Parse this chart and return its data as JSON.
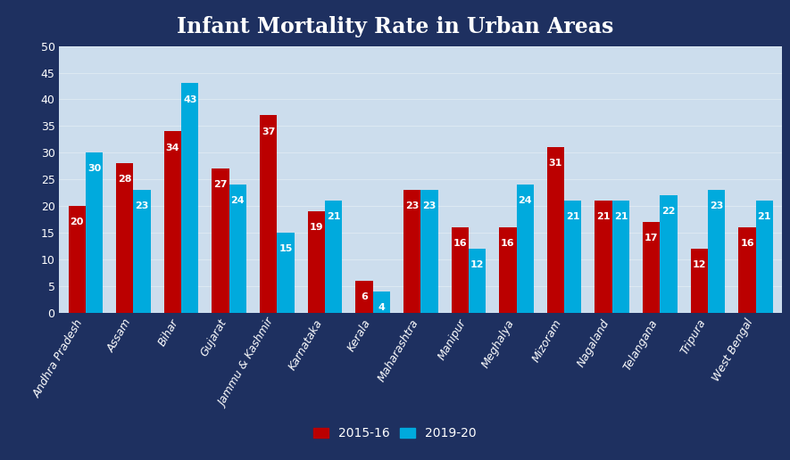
{
  "title": "Infant Mortality Rate in Urban Areas",
  "categories": [
    "Andhra Pradesh",
    "Assam",
    "Bihar",
    "Gujarat",
    "Jammu & Kashmir",
    "Karnataka",
    "Kerala",
    "Maharashtra",
    "Manipur",
    "Meghalya",
    "Mizoram",
    "Nagaland",
    "Telangana",
    "Tripura",
    "West Bengal"
  ],
  "values_2015": [
    20,
    28,
    34,
    27,
    37,
    19,
    6,
    23,
    16,
    16,
    31,
    21,
    17,
    12,
    16
  ],
  "values_2019": [
    30,
    23,
    43,
    24,
    15,
    21,
    4,
    23,
    12,
    24,
    21,
    21,
    22,
    23,
    21
  ],
  "bar_color_2015": "#bb0000",
  "bar_color_2019": "#00aadd",
  "background_outer": "#1e3060",
  "background_inner": "#ccdded",
  "title_color": "#ffffff",
  "label_color": "#ffffff",
  "value_color": "#ffffff",
  "ytick_color": "#ffffff",
  "ylim": [
    0,
    50
  ],
  "yticks": [
    0,
    5,
    10,
    15,
    20,
    25,
    30,
    35,
    40,
    45,
    50
  ],
  "legend_2015": "2015-16",
  "legend_2019": "2019-20",
  "bar_width": 0.36,
  "title_fontsize": 17,
  "tick_fontsize": 9,
  "value_fontsize": 8,
  "legend_fontsize": 10
}
